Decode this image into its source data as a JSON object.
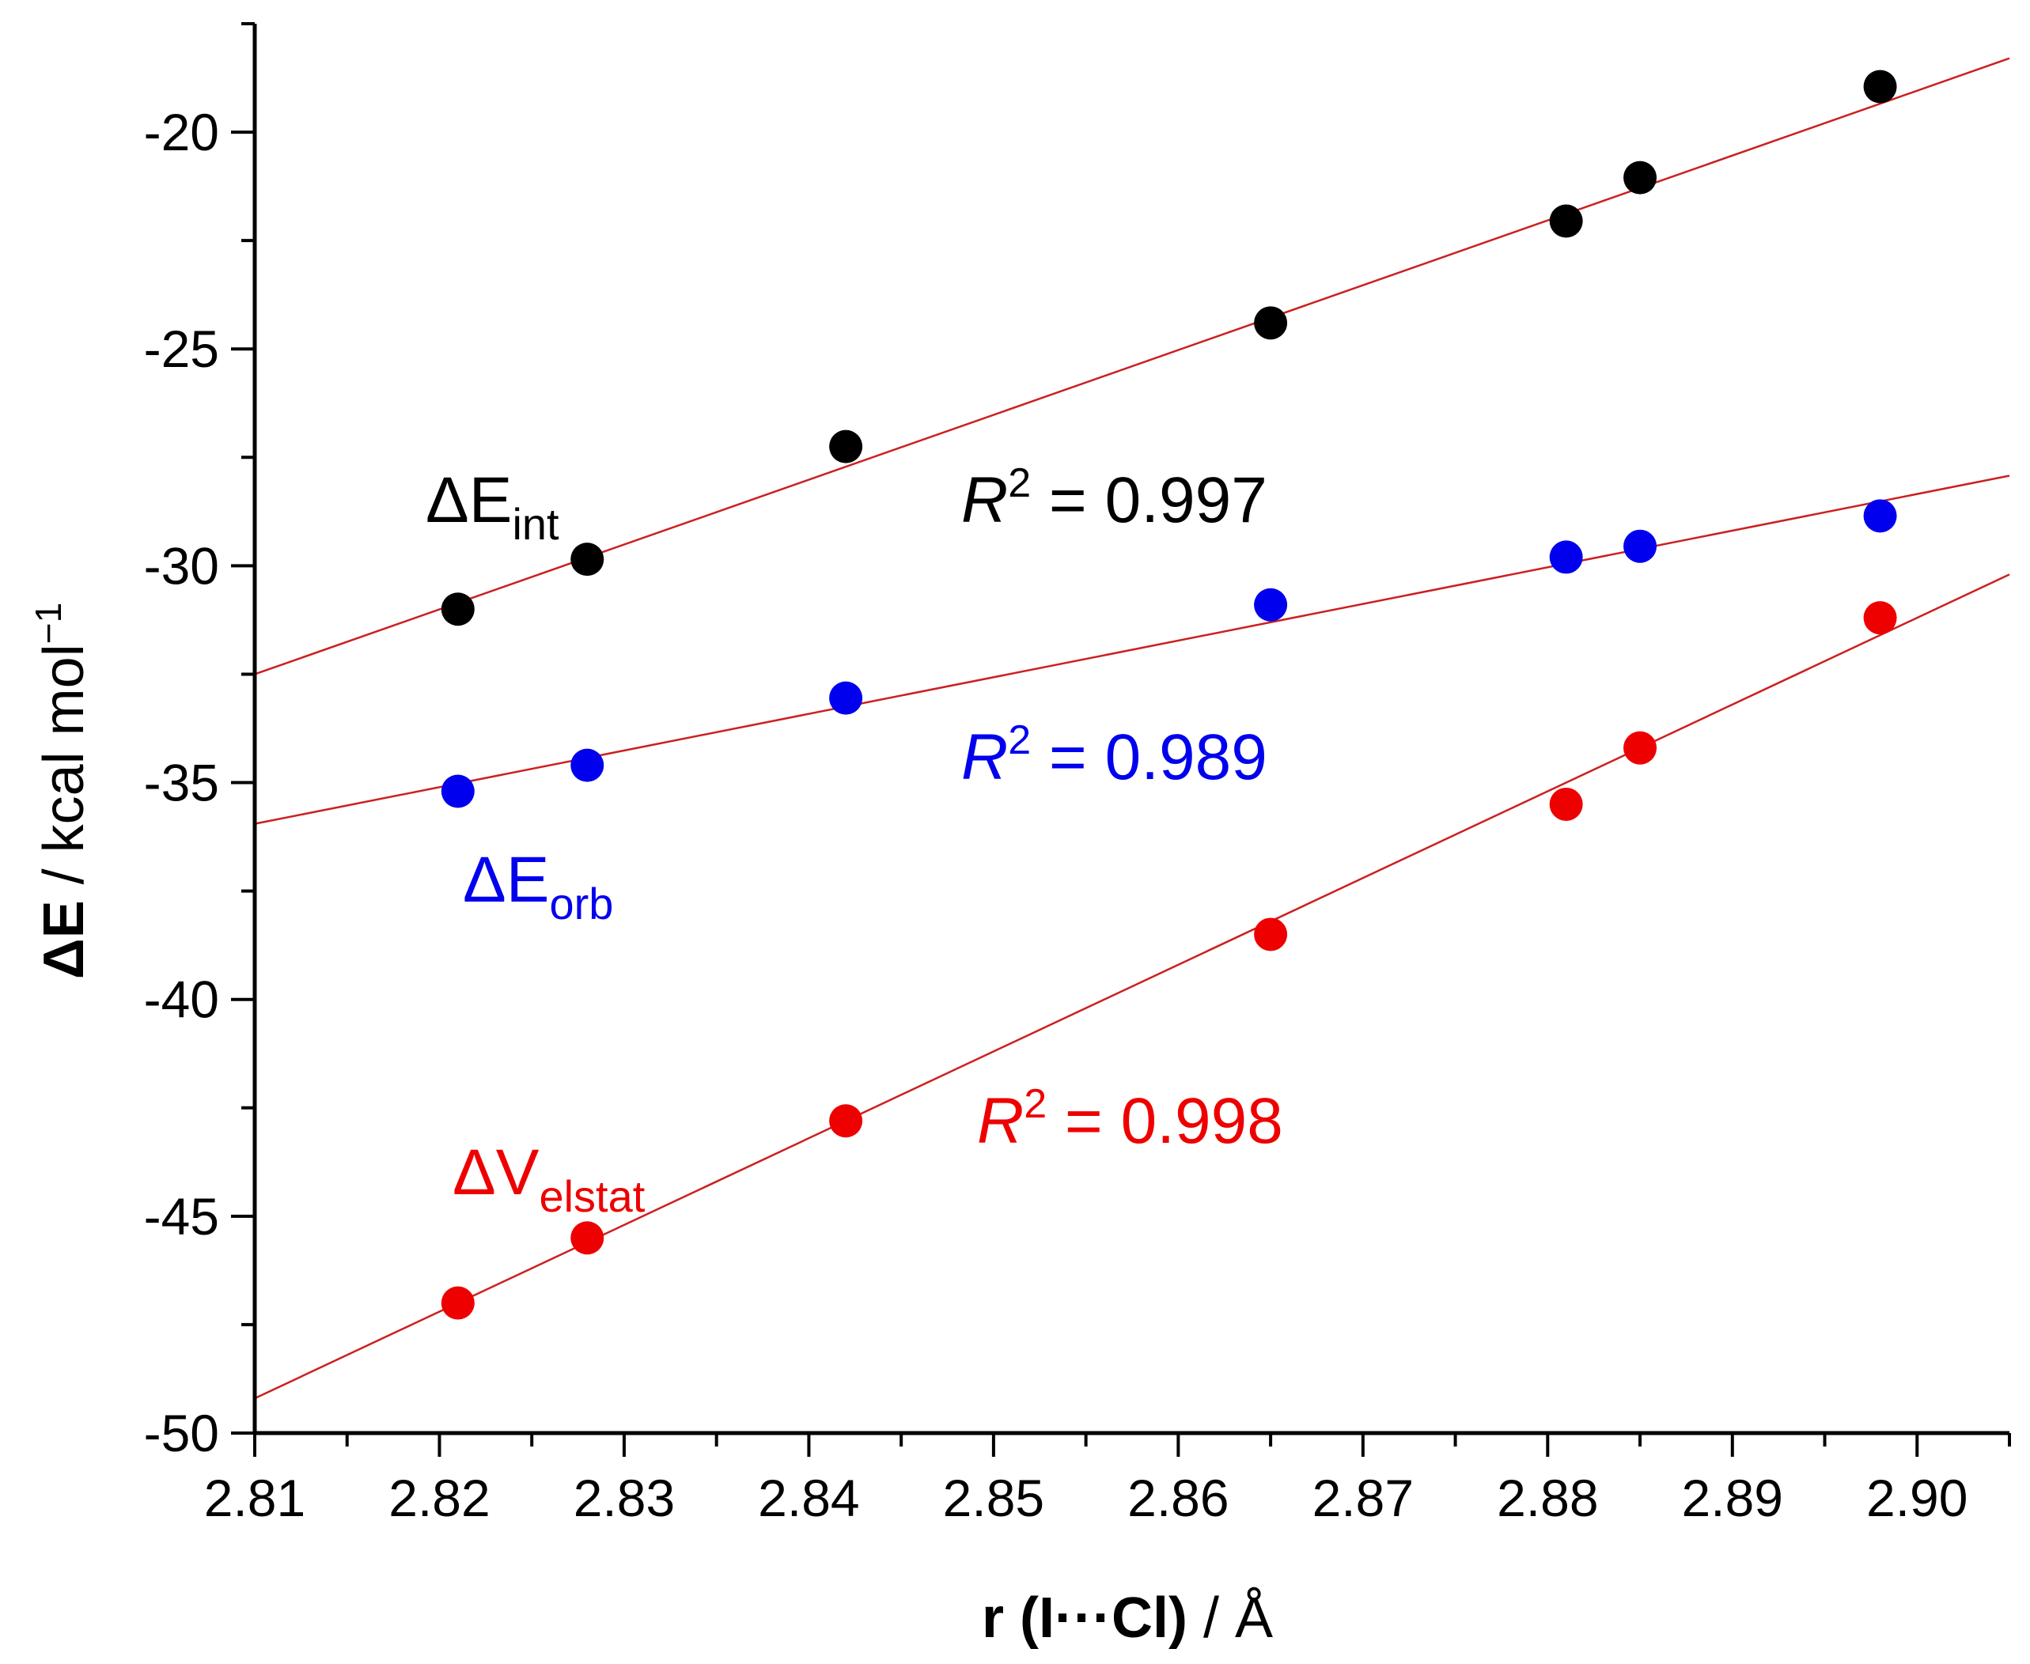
{
  "chart_data": {
    "type": "scatter",
    "title": "",
    "xlabel": {
      "bold": "r (I···Cl)",
      "rest": " / Å"
    },
    "ylabel": {
      "bold": "ΔE",
      "rest": " / kcal mol",
      "sup": "−1"
    },
    "xlim": [
      2.81,
      2.905
    ],
    "ylim": [
      -50,
      -17.5
    ],
    "x_ticks": [
      "2.81",
      "2.82",
      "2.83",
      "2.84",
      "2.85",
      "2.86",
      "2.87",
      "2.88",
      "2.89",
      "2.90"
    ],
    "y_ticks": [
      "-20",
      "-25",
      "-30",
      "-35",
      "-40",
      "-45",
      "-50"
    ],
    "grid": false,
    "series": [
      {
        "name": "ΔE_int",
        "label_main": "ΔE",
        "label_sub": "int",
        "color": "#000000",
        "points": [
          [
            2.821,
            -31.0
          ],
          [
            2.828,
            -29.85
          ],
          [
            2.842,
            -27.25
          ],
          [
            2.865,
            -24.4
          ],
          [
            2.881,
            -22.05
          ],
          [
            2.885,
            -21.05
          ],
          [
            2.898,
            -18.95
          ]
        ],
        "fit": {
          "intercept_at_xmin": -32.5,
          "slope": 149.5
        },
        "r2_label": "R",
        "r2_sup": "2",
        "r2_value": " = 0.997"
      },
      {
        "name": "ΔE_orb",
        "label_main": "ΔE",
        "label_sub": "orb",
        "color": "#0000ee",
        "points": [
          [
            2.821,
            -35.2
          ],
          [
            2.828,
            -34.6
          ],
          [
            2.842,
            -33.05
          ],
          [
            2.865,
            -30.9
          ],
          [
            2.881,
            -29.8
          ],
          [
            2.885,
            -29.55
          ],
          [
            2.898,
            -28.85
          ]
        ],
        "fit": {
          "intercept_at_xmin": -35.95,
          "slope": 84.5
        },
        "r2_label": "R",
        "r2_sup": "2",
        "r2_value": " = 0.989"
      },
      {
        "name": "ΔV_elstat",
        "label_main": "ΔV",
        "label_sub": "elstat",
        "color": "#ee0000",
        "points": [
          [
            2.821,
            -47.0
          ],
          [
            2.828,
            -45.5
          ],
          [
            2.842,
            -42.8
          ],
          [
            2.865,
            -38.5
          ],
          [
            2.881,
            -35.5
          ],
          [
            2.885,
            -34.2
          ],
          [
            2.898,
            -31.2
          ]
        ],
        "fit": {
          "intercept_at_xmin": -49.2,
          "slope": 200.0
        },
        "r2_label": "R",
        "r2_sup": "2",
        "r2_value": " = 0.998"
      }
    ],
    "fit_line_color": "#cc2020"
  }
}
